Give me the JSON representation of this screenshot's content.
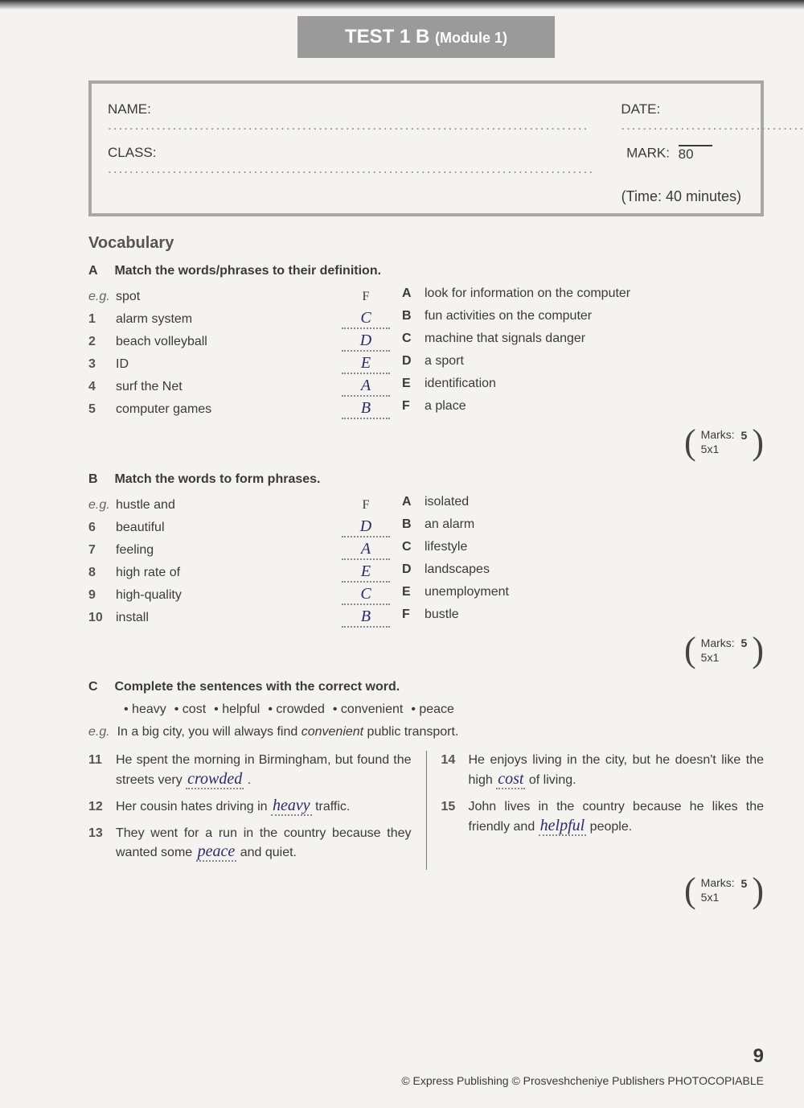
{
  "title_main": "TEST 1 B",
  "title_sub": "(Module 1)",
  "info": {
    "name_label": "NAME:",
    "class_label": "CLASS:",
    "date_label": "DATE:",
    "mark_label": "MARK:",
    "mark_total": "80",
    "time_note": "(Time: 40 minutes)"
  },
  "vocab_heading": "Vocabulary",
  "sectionA": {
    "letter": "A",
    "instruction": "Match the words/phrases to their definition.",
    "eg_label": "e.g.",
    "eg_word": "spot",
    "eg_answer": "F",
    "items": [
      {
        "n": "1",
        "word": "alarm system",
        "ans": "C"
      },
      {
        "n": "2",
        "word": "beach volleyball",
        "ans": "D"
      },
      {
        "n": "3",
        "word": "ID",
        "ans": "E"
      },
      {
        "n": "4",
        "word": "surf the Net",
        "ans": "A"
      },
      {
        "n": "5",
        "word": "computer games",
        "ans": "B"
      }
    ],
    "defs": [
      {
        "l": "A",
        "t": "look for information on the computer"
      },
      {
        "l": "B",
        "t": "fun activities on the computer"
      },
      {
        "l": "C",
        "t": "machine that signals danger"
      },
      {
        "l": "D",
        "t": "a sport"
      },
      {
        "l": "E",
        "t": "identification"
      },
      {
        "l": "F",
        "t": "a place"
      }
    ],
    "marks_label": "Marks:",
    "marks_calc": "5x1",
    "marks_total": "5"
  },
  "sectionB": {
    "letter": "B",
    "instruction": "Match the words to form phrases.",
    "eg_label": "e.g.",
    "eg_word": "hustle and",
    "eg_answer": "F",
    "items": [
      {
        "n": "6",
        "word": "beautiful",
        "ans": "D"
      },
      {
        "n": "7",
        "word": "feeling",
        "ans": "A"
      },
      {
        "n": "8",
        "word": "high rate of",
        "ans": "E"
      },
      {
        "n": "9",
        "word": "high-quality",
        "ans": "C"
      },
      {
        "n": "10",
        "word": "install",
        "ans": "B"
      }
    ],
    "defs": [
      {
        "l": "A",
        "t": "isolated"
      },
      {
        "l": "B",
        "t": "an alarm"
      },
      {
        "l": "C",
        "t": "lifestyle"
      },
      {
        "l": "D",
        "t": "landscapes"
      },
      {
        "l": "E",
        "t": "unemployment"
      },
      {
        "l": "F",
        "t": "bustle"
      }
    ],
    "marks_label": "Marks:",
    "marks_calc": "5x1",
    "marks_total": "5"
  },
  "sectionC": {
    "letter": "C",
    "instruction": "Complete the sentences with the correct word.",
    "bank": [
      "heavy",
      "cost",
      "helpful",
      "crowded",
      "convenient",
      "peace"
    ],
    "eg_label": "e.g.",
    "eg_pre": "In a big city, you will always find ",
    "eg_word": "convenient",
    "eg_post": " public transport.",
    "left": [
      {
        "n": "11",
        "pre": "He spent the morning in Birmingham, but found the streets very ",
        "ans": "crowded",
        "post": " ."
      },
      {
        "n": "12",
        "pre": "Her cousin hates driving in ",
        "ans": "heavy",
        "post": " traffic."
      },
      {
        "n": "13",
        "pre": "They went for a run in the country because they wanted some ",
        "ans": "peace",
        "post": " and quiet."
      }
    ],
    "right": [
      {
        "n": "14",
        "pre": "He enjoys living in the city, but he doesn't like the high ",
        "ans": "cost",
        "post": " of living."
      },
      {
        "n": "15",
        "pre": "John lives in the country because he likes the friendly and ",
        "ans": "helpful",
        "post": " people."
      }
    ],
    "marks_label": "Marks:",
    "marks_calc": "5x1",
    "marks_total": "5"
  },
  "footer": "© Express Publishing © Prosveshcheniye Publishers  PHOTOCOPIABLE",
  "page_number": "9"
}
